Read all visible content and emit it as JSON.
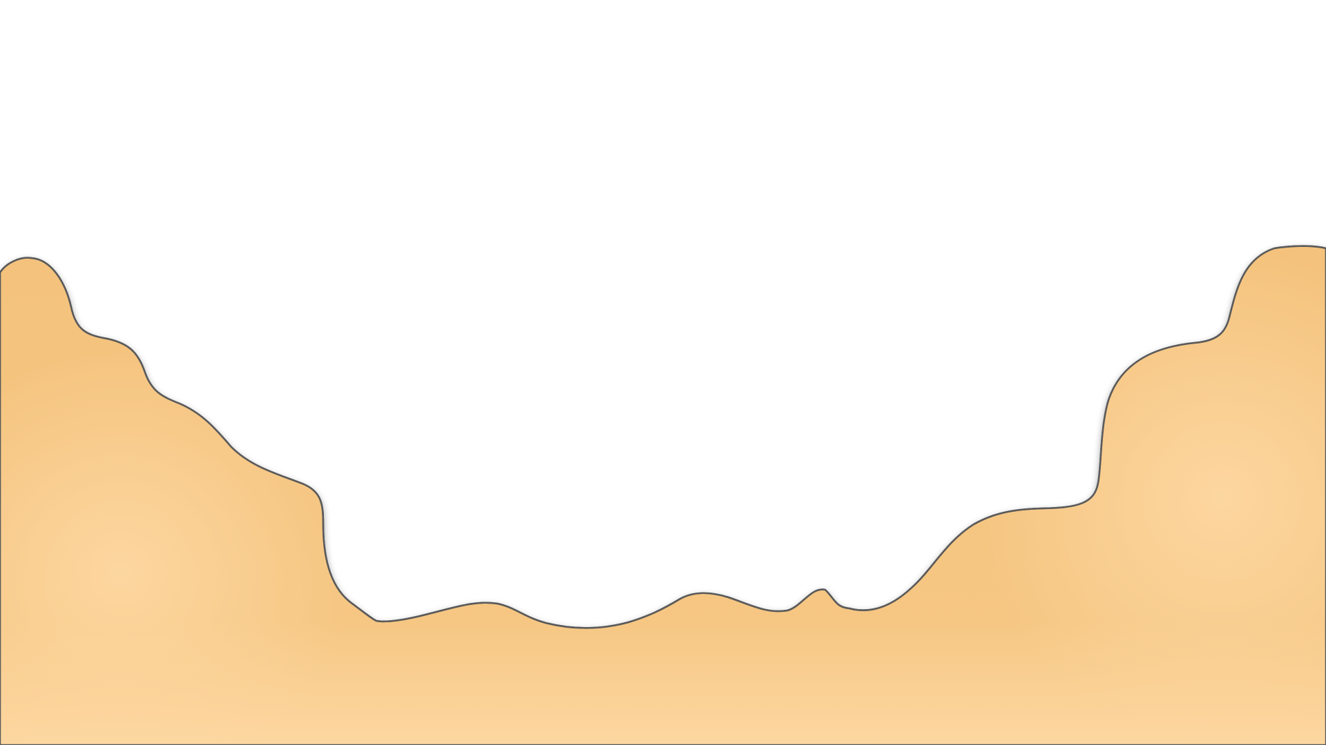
{
  "scene": {
    "background_color": "#ffffff",
    "terrain": {
      "fill_base": "#f5c47e",
      "fill_light": "#fcd6a0",
      "outline_color": "#555555",
      "shadow_color": "#000000"
    }
  }
}
